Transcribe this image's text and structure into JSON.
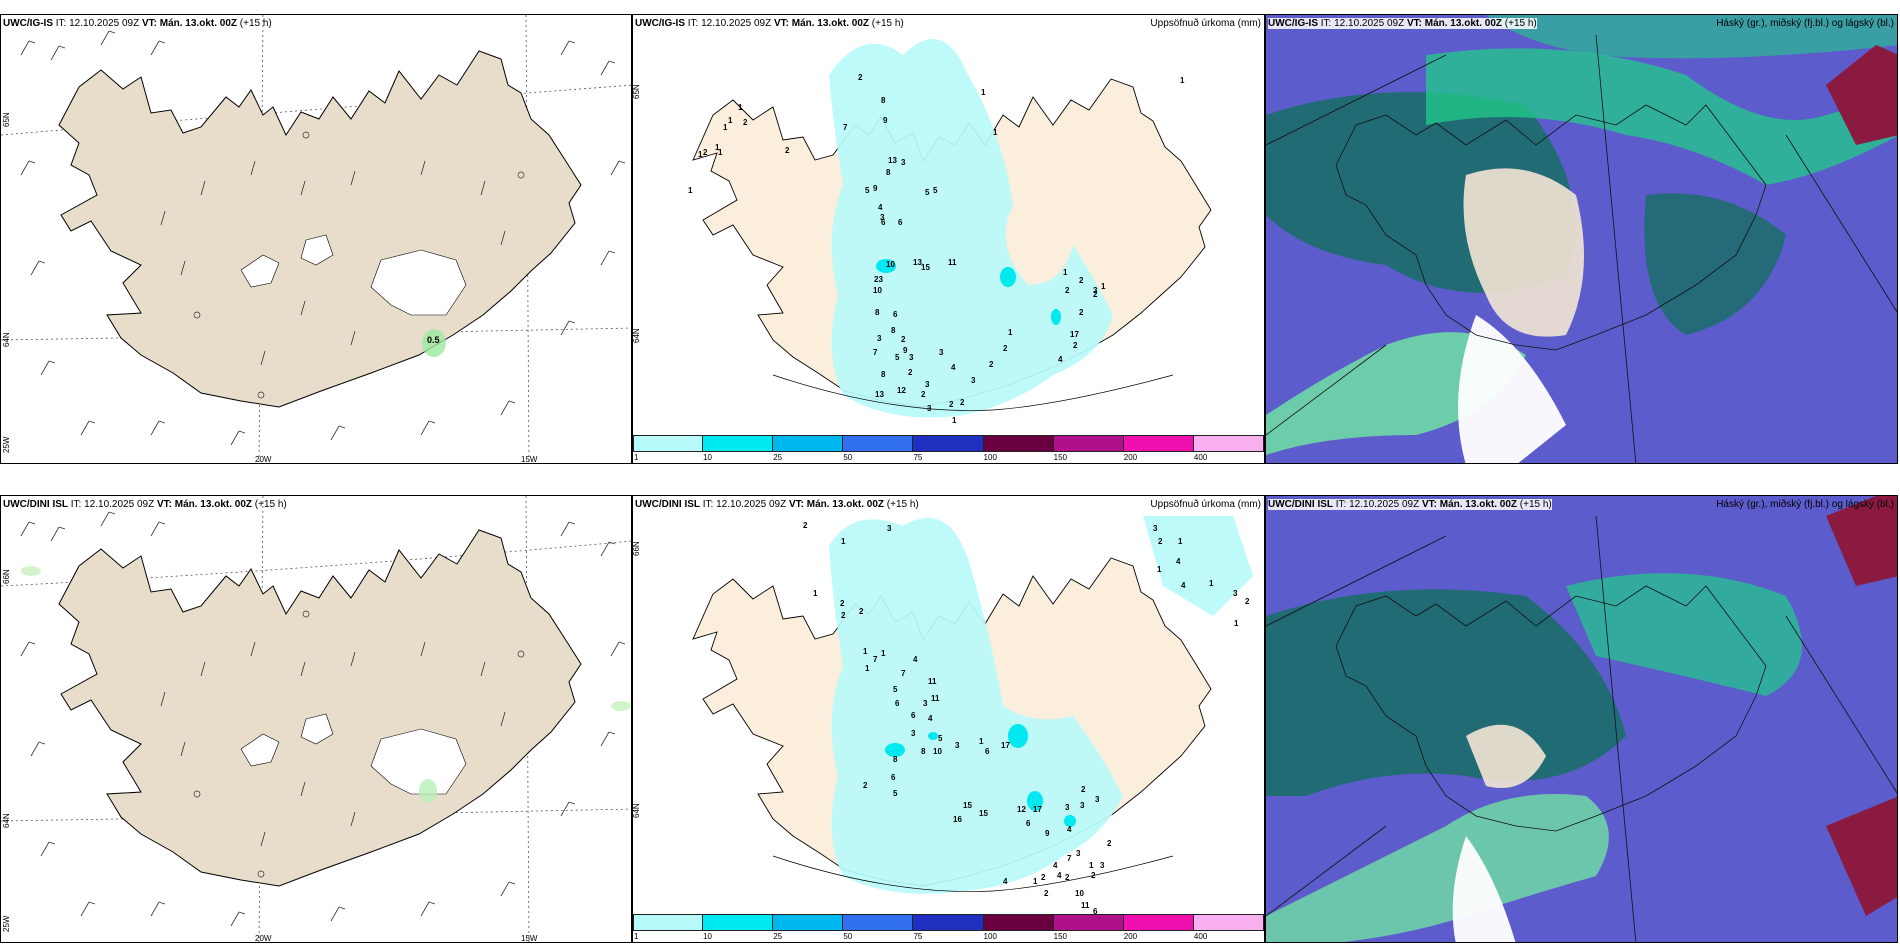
{
  "panels": {
    "p1": {
      "model": "UWC/IG-IS",
      "it_label": "IT:",
      "it": "12.10.2025 09Z",
      "vt_label": "VT:",
      "vt": "Mán. 13.okt. 00Z",
      "lead": "(+15 h)",
      "marker_value": "0.5",
      "lat_labels": [
        "65N",
        "64N"
      ],
      "lon_labels": [
        "25W",
        "20W",
        "15W"
      ]
    },
    "p2": {
      "model": "UWC/IG-IS",
      "it_label": "IT:",
      "it": "12.10.2025 09Z",
      "vt_label": "VT:",
      "vt": "Mán. 13.okt. 00Z",
      "lead": "(+15 h)",
      "title_right": "Uppsöfnuð úrkoma (mm)",
      "lat_labels": [
        "65N",
        "64N"
      ]
    },
    "p3": {
      "model": "UWC/IG-IS",
      "it_label": "IT:",
      "it": "12.10.2025 09Z",
      "vt_label": "VT:",
      "vt": "Mán. 13.okt. 00Z",
      "lead": "(+15 h)",
      "title_right": "Háský (gr.), miðský (fj.bl.) og lágský (bl.)"
    },
    "p4": {
      "model": "UWC/DINI ISL",
      "it_label": "IT:",
      "it": "12.10.2025 09Z",
      "vt_label": "VT:",
      "vt": "Mán. 13.okt. 00Z",
      "lead": "(+15 h)",
      "lat_labels": [
        "66N",
        "64N"
      ],
      "lon_labels": [
        "25W",
        "20W",
        "15W"
      ]
    },
    "p5": {
      "model": "UWC/DINI ISL",
      "it_label": "IT:",
      "it": "12.10.2025 09Z",
      "vt_label": "VT:",
      "vt": "Mán. 13.okt. 00Z",
      "lead": "(+15 h)",
      "title_right": "Uppsöfnuð úrkoma (mm)",
      "lat_labels": [
        "66N",
        "64N"
      ]
    },
    "p6": {
      "model": "UWC/DINI ISL",
      "it_label": "IT:",
      "it": "12.10.2025 09Z",
      "vt_label": "VT:",
      "vt": "Mán. 13.okt. 00Z",
      "lead": "(+15 h)",
      "title_right": "Háský (gr.), miðský (fj.bl.) og lágský (bl.)"
    }
  },
  "colorbar": {
    "ticks": [
      "1",
      "10",
      "25",
      "50",
      "75",
      "100",
      "150",
      "200",
      "400"
    ],
    "colors": [
      "#b8fafa",
      "#00e8f0",
      "#00b8f0",
      "#2f6ff0",
      "#1f2fc0",
      "#6a0040",
      "#b0108a",
      "#f010b0",
      "#f8b0f0"
    ]
  },
  "precip_values_top": [
    "2",
    "1",
    "2",
    "1",
    "1",
    "2",
    "1",
    "1",
    "1",
    "2",
    "7",
    "8",
    "9",
    "13",
    "8",
    "3",
    "5",
    "9",
    "5",
    "4",
    "3",
    "6",
    "1",
    "6",
    "5",
    "11",
    "10",
    "13",
    "15",
    "23",
    "10",
    "8",
    "6",
    "2",
    "7",
    "8",
    "3",
    "9",
    "3",
    "2",
    "5",
    "8",
    "3",
    "4",
    "3",
    "2",
    "13",
    "12",
    "3",
    "2",
    "1",
    "2",
    "3",
    "2",
    "2",
    "1",
    "1",
    "2",
    "17",
    "2",
    "4",
    "2",
    "3",
    "2",
    "1",
    "2",
    "1",
    "1",
    "1"
  ],
  "precip_values_bottom": [
    "2",
    "1",
    "3",
    "1",
    "2",
    "2",
    "2",
    "1",
    "1",
    "1",
    "7",
    "4",
    "7",
    "11",
    "11",
    "5",
    "6",
    "3",
    "4",
    "5",
    "3",
    "1",
    "6",
    "3",
    "8",
    "10",
    "6",
    "15",
    "16",
    "15",
    "17",
    "8",
    "6",
    "5",
    "2",
    "12",
    "17",
    "9",
    "4",
    "6",
    "3",
    "3",
    "3",
    "2",
    "4",
    "7",
    "3",
    "2",
    "6",
    "11",
    "10",
    "2",
    "4",
    "1",
    "2",
    "4",
    "1",
    "2",
    "3",
    "2",
    "2",
    "4",
    "1",
    "3",
    "1",
    "4",
    "1",
    "3",
    "1",
    "2"
  ],
  "colors": {
    "land": "#f3e6d4",
    "land_wind": "#e8dccb",
    "precip_light": "#b8fafa",
    "precip_mid": "#00e8f0",
    "cloud_high": "#1e6b70",
    "cloud_mid": "#5c5ccc",
    "cloud_low": "#22cc8a",
    "border": "#000000"
  }
}
